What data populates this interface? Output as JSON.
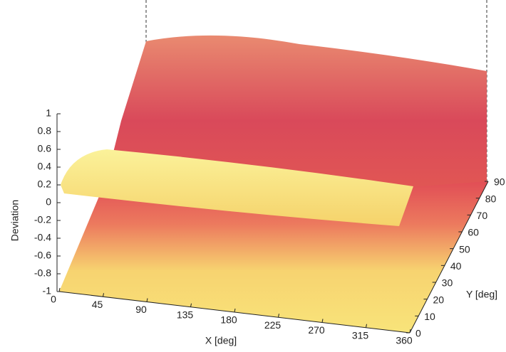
{
  "chart_data": {
    "type": "surface",
    "xlabel": "X [deg]",
    "ylabel": "Y [deg]",
    "zlabel": "Deviation",
    "xlim": [
      0,
      360
    ],
    "xticks": [
      0,
      45,
      90,
      135,
      180,
      225,
      270,
      315,
      360
    ],
    "ylim": [
      0,
      90
    ],
    "yticks": [
      0,
      10,
      20,
      30,
      40,
      50,
      60,
      70,
      80,
      90
    ],
    "zlim": [
      -1,
      1
    ],
    "zticks": [
      1,
      0.8,
      0.6,
      0.4,
      0.2,
      0,
      -0.2,
      -0.4,
      -0.6,
      -0.8,
      -1
    ]
  }
}
